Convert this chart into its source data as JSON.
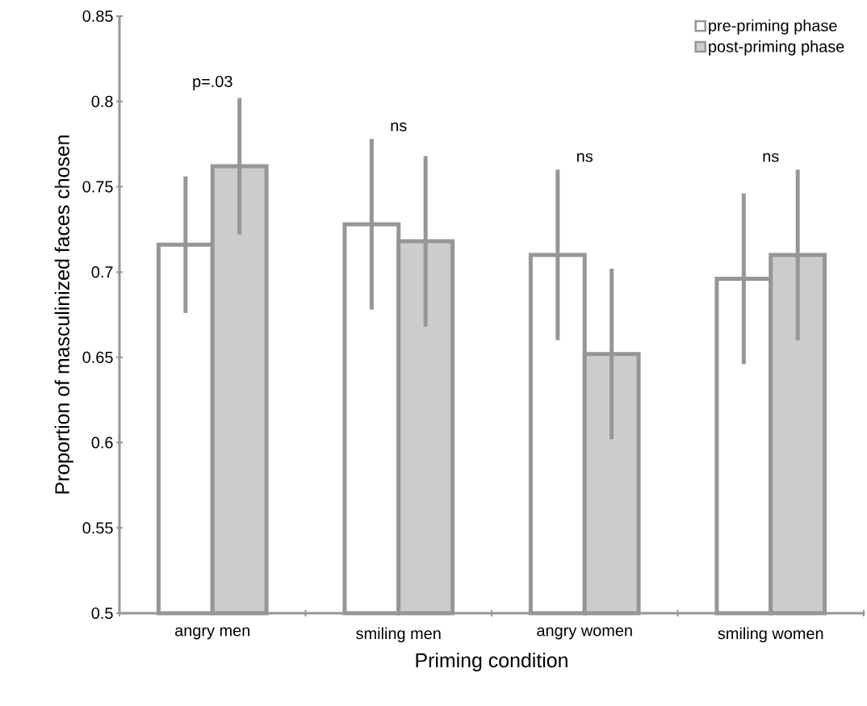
{
  "chart_data": {
    "type": "bar",
    "xlabel": "Priming condition",
    "ylabel": "Proportion of masculinized faces chosen",
    "categories": [
      "angry men",
      "smiling men",
      "angry women",
      "smiling women"
    ],
    "series": [
      {
        "name": "pre-priming phase",
        "color": "#ffffff",
        "values": [
          0.716,
          0.728,
          0.71,
          0.696
        ],
        "errors": [
          0.04,
          0.05,
          0.05,
          0.05
        ]
      },
      {
        "name": "post-priming phase",
        "color": "#cccccc",
        "values": [
          0.762,
          0.718,
          0.652,
          0.71
        ],
        "errors": [
          0.04,
          0.05,
          0.05,
          0.05
        ]
      }
    ],
    "annotations": [
      "p=.03",
      "ns",
      "ns",
      "ns"
    ],
    "ylim": [
      0.5,
      0.85
    ],
    "yticks": [
      0.5,
      0.55,
      0.6,
      0.65,
      0.7,
      0.75,
      0.8,
      0.85
    ],
    "legend": "top right"
  }
}
